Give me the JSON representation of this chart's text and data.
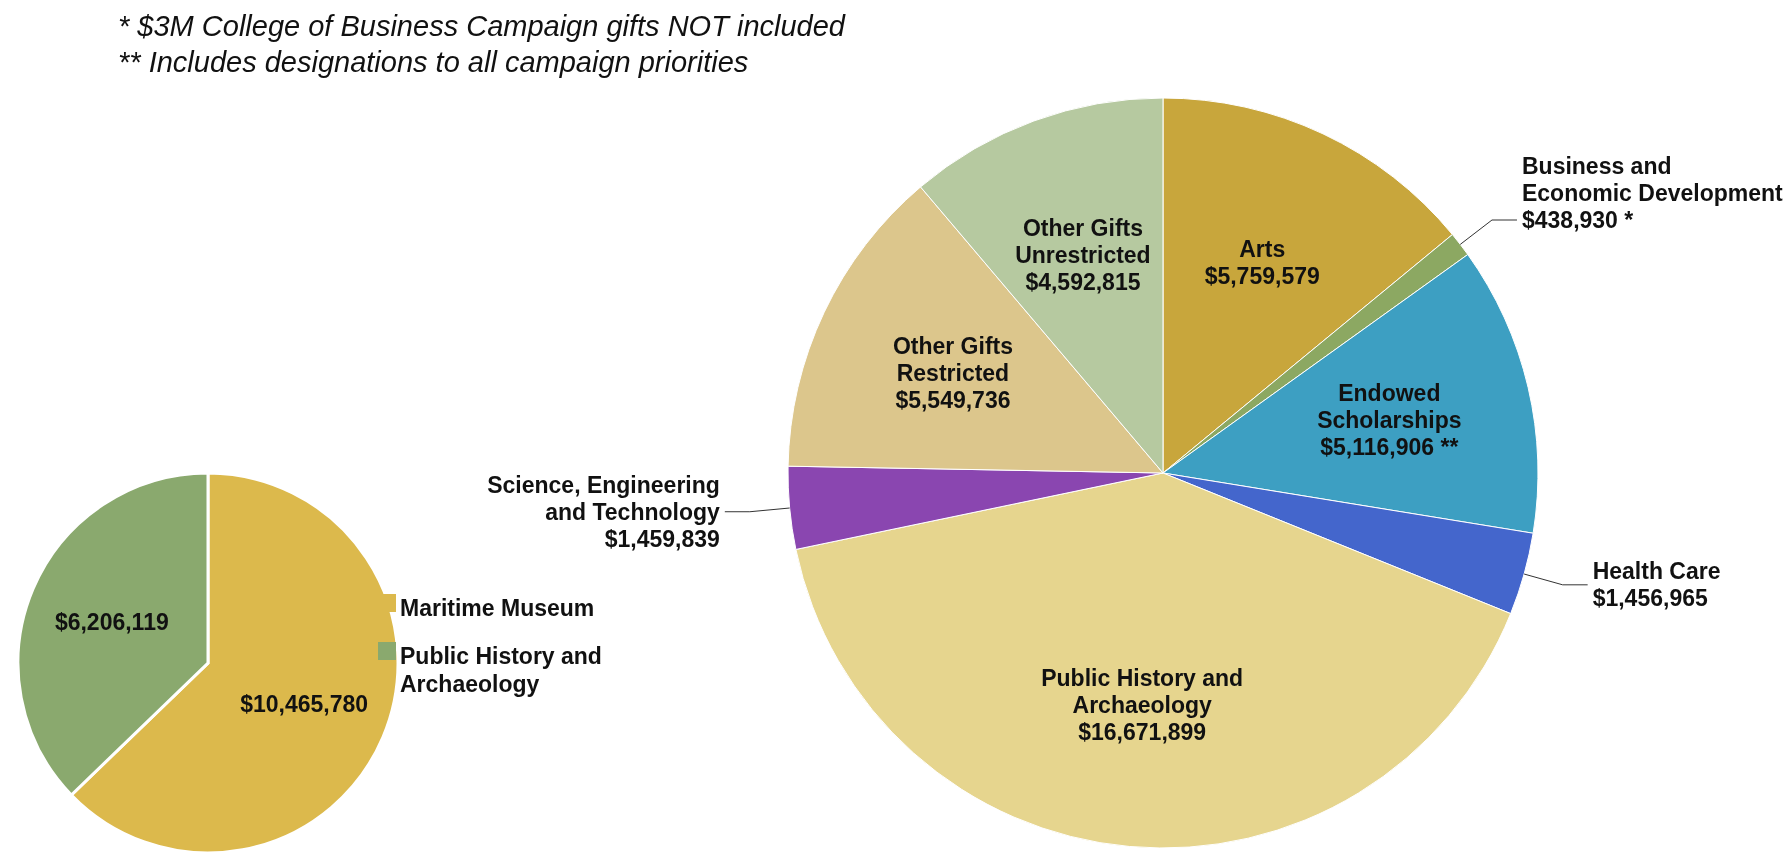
{
  "chart_data": [
    {
      "type": "pie",
      "annotations": [
        "* $3M College of Business Campaign gifts NOT included",
        "** Includes designations to all campaign priorities"
      ],
      "categories": [
        "Arts",
        "Business and Economic Development",
        "Endowed Scholarships",
        "Health Care",
        "Public History and Archaeology",
        "Science, Engineering and Technology",
        "Other Gifts Restricted",
        "Other Gifts Unrestricted"
      ],
      "values": [
        5759579,
        438930,
        5116906,
        1456965,
        16671899,
        1459839,
        5549736,
        4592815
      ],
      "value_labels": [
        "$5,759,579",
        "$438,930 *",
        "$5,116,906 **",
        "$1,456,965",
        "$16,671,899",
        "$1,459,839",
        "$5,549,736",
        "$4,592,815"
      ],
      "colors": [
        "#c8a63c",
        "#8ca862",
        "#3d9fc2",
        "#4466cc",
        "#e6d58e",
        "#8a46b0",
        "#dcc68c",
        "#b6c9a0"
      ],
      "legend": false
    },
    {
      "type": "pie",
      "categories": [
        "Maritime Museum",
        "Public History and Archaeology"
      ],
      "values": [
        10465780,
        6206119
      ],
      "value_labels": [
        "$10,465,780",
        "$6,206,119"
      ],
      "colors": [
        "#dcb94c",
        "#8aa96e"
      ],
      "legend": "right"
    }
  ]
}
